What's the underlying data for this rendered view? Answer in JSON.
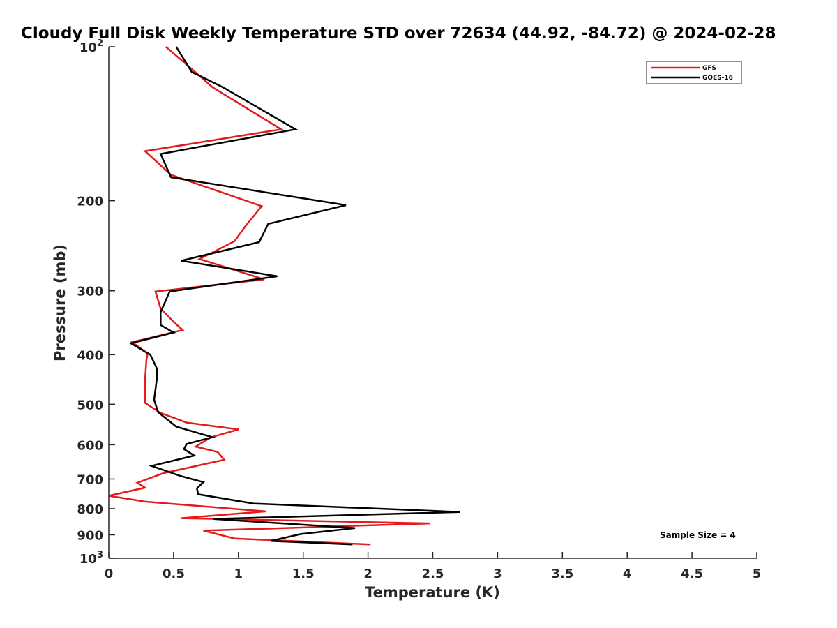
{
  "chart_data": {
    "type": "line",
    "title": "Cloudy Full Disk Weekly Temperature STD over 72634 (44.92, -84.72) @ 2024-02-28",
    "xlabel": "Temperature (K)",
    "ylabel": "Pressure (mb)",
    "xlim": [
      0,
      5
    ],
    "ylim": [
      100,
      1000
    ],
    "y_scale": "log",
    "y_reversed": true,
    "grid": false,
    "legend_position": "top-right",
    "x_ticks": [
      0,
      0.5,
      1,
      1.5,
      2,
      2.5,
      3,
      3.5,
      4,
      4.5,
      5
    ],
    "x_tick_labels": [
      "0",
      "0.5",
      "1",
      "1.5",
      "2",
      "2.5",
      "3",
      "3.5",
      "4",
      "4.5",
      "5"
    ],
    "y_ticks": [
      {
        "value": 100,
        "base": "10",
        "exp": "2"
      },
      {
        "value": 200,
        "label": "200"
      },
      {
        "value": 300,
        "label": "300"
      },
      {
        "value": 400,
        "label": "400"
      },
      {
        "value": 500,
        "label": "500"
      },
      {
        "value": 600,
        "label": "600"
      },
      {
        "value": 700,
        "label": "700"
      },
      {
        "value": 800,
        "label": "800"
      },
      {
        "value": 900,
        "label": "900"
      },
      {
        "value": 1000,
        "base": "10",
        "exp": "3"
      }
    ],
    "series": [
      {
        "name": "GFS",
        "color": "#e41a1c",
        "x": [
          0.44,
          0.63,
          0.8,
          1.33,
          0.28,
          0.48,
          1.18,
          1.05,
          0.97,
          0.7,
          1.2,
          0.36,
          0.4,
          0.5,
          0.57,
          0.18,
          0.3,
          0.29,
          0.28,
          0.28,
          0.4,
          0.6,
          1.0,
          0.79,
          0.67,
          0.84,
          0.89,
          0.42,
          0.22,
          0.28,
          0.0,
          0.28,
          1.21,
          0.56,
          2.48,
          0.73,
          0.97,
          2.02
        ],
        "y": [
          100,
          110,
          120,
          145,
          160,
          178,
          205,
          225,
          240,
          260,
          285,
          301,
          325,
          345,
          358,
          378,
          398,
          410,
          448,
          497,
          520,
          543,
          560,
          580,
          605,
          620,
          642,
          682,
          712,
          728,
          755,
          775,
          810,
          835,
          855,
          883,
          915,
          940
        ]
      },
      {
        "name": "GOES-16",
        "color": "#000000",
        "x": [
          0.52,
          0.64,
          0.88,
          1.44,
          0.4,
          0.48,
          1.83,
          1.23,
          1.16,
          0.56,
          1.3,
          0.47,
          0.4,
          0.4,
          0.5,
          0.17,
          0.32,
          0.37,
          0.37,
          0.35,
          0.38,
          0.52,
          0.8,
          0.6,
          0.58,
          0.66,
          0.33,
          0.55,
          0.73,
          0.68,
          0.69,
          1.12,
          2.71,
          0.81,
          1.9,
          1.48,
          1.25,
          1.88
        ],
        "y": [
          100,
          112,
          120,
          145,
          162,
          180,
          204,
          222,
          241,
          262,
          281,
          301,
          330,
          350,
          362,
          380,
          400,
          425,
          448,
          490,
          518,
          553,
          580,
          598,
          612,
          630,
          660,
          690,
          710,
          730,
          750,
          782,
          812,
          838,
          873,
          897,
          925,
          940
        ]
      }
    ],
    "annotation": "Sample Size = 4"
  }
}
